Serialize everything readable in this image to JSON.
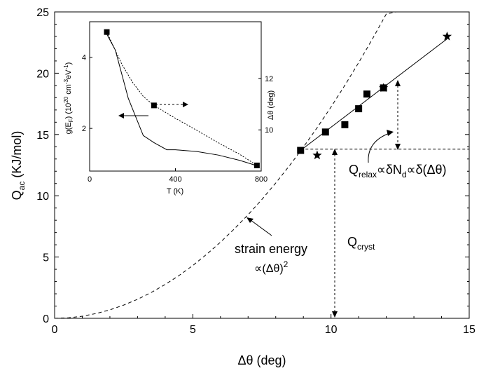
{
  "chart_data": [
    {
      "type": "line",
      "role": "main",
      "xlabel": "Δθ (deg)",
      "ylabel": {
        "base": "Q",
        "sub": "ac",
        "rest": " (KJ/mol)"
      },
      "xlim": [
        0,
        15
      ],
      "ylim": [
        0,
        25
      ],
      "xticks": [
        0,
        5,
        10,
        15
      ],
      "yticks": [
        0,
        5,
        10,
        15,
        20,
        25
      ],
      "grid": false,
      "series": [
        {
          "style": "dashed",
          "x": [
            0,
            0.5,
            1,
            1.5,
            2,
            2.5,
            3,
            3.5,
            4,
            4.5,
            5,
            5.5,
            6,
            6.5,
            7,
            7.5,
            8,
            8.5,
            9,
            9.5,
            10,
            10.5,
            11,
            11.5,
            12,
            12.35
          ],
          "y": [
            0,
            0.04,
            0.17,
            0.39,
            0.69,
            1.08,
            1.55,
            2.11,
            2.76,
            3.49,
            4.31,
            5.22,
            6.21,
            7.29,
            8.45,
            9.7,
            11.04,
            12.46,
            13.97,
            15.56,
            17.24,
            19.01,
            20.86,
            22.8,
            24.83,
            25.0
          ]
        },
        {
          "style": "solid",
          "x": [
            8.9,
            14.2
          ],
          "y": [
            13.7,
            22.8
          ]
        },
        {
          "style": "dashed-horizontal",
          "x": [
            8.9,
            15
          ],
          "y": [
            13.8,
            13.8
          ]
        }
      ],
      "squares": {
        "x": [
          8.9,
          9.8,
          10.5,
          11.0,
          11.3,
          11.9
        ],
        "y": [
          13.7,
          15.2,
          15.8,
          17.1,
          18.3,
          18.8
        ]
      },
      "stars": {
        "x": [
          9.5,
          11.9,
          14.2
        ],
        "y": [
          13.3,
          18.8,
          23.0
        ]
      },
      "annotations": {
        "strain_label": "strain energy",
        "strain_prop": "∝(Δθ)",
        "strain_exp": "2",
        "qrelax_base": "Q",
        "qrelax_sub": "relax",
        "qrelax_mid": "∝δN",
        "qrelax_sub2": "d",
        "qrelax_end": "∝δ(Δθ)",
        "qcryst_base": "Q",
        "qcryst_sub": "cryst"
      }
    },
    {
      "type": "line",
      "role": "inset",
      "xlabel": "T (K)",
      "ylabel_left": "g(E_F) (10^20 cm^-3 eV^-1)",
      "ylabel_right": "Δθ (deg)",
      "xlim": [
        0,
        800
      ],
      "xticks": [
        0,
        400,
        800
      ],
      "yticks_left": [
        2,
        4
      ],
      "yticks_right": [
        10,
        12
      ],
      "series": [
        {
          "name": "g(E_F)",
          "style": "solid",
          "axis": "left",
          "x": [
            80,
            120,
            180,
            250,
            300,
            360,
            400,
            500,
            600,
            700,
            780
          ],
          "y": [
            4.65,
            4.2,
            2.85,
            1.8,
            1.6,
            1.4,
            1.4,
            1.35,
            1.25,
            1.1,
            0.95
          ]
        },
        {
          "name": "Δθ",
          "style": "dotted",
          "axis": "right",
          "x": [
            80,
            150,
            200,
            250,
            300,
            400,
            500,
            600,
            700,
            780
          ],
          "y": [
            13.8,
            12.55,
            11.85,
            11.3,
            10.95,
            10.45,
            9.98,
            9.5,
            9.05,
            8.62
          ]
        }
      ],
      "squares": {
        "x": [
          80,
          300,
          780
        ],
        "y_right": [
          13.8,
          10.95,
          8.62
        ]
      }
    }
  ]
}
